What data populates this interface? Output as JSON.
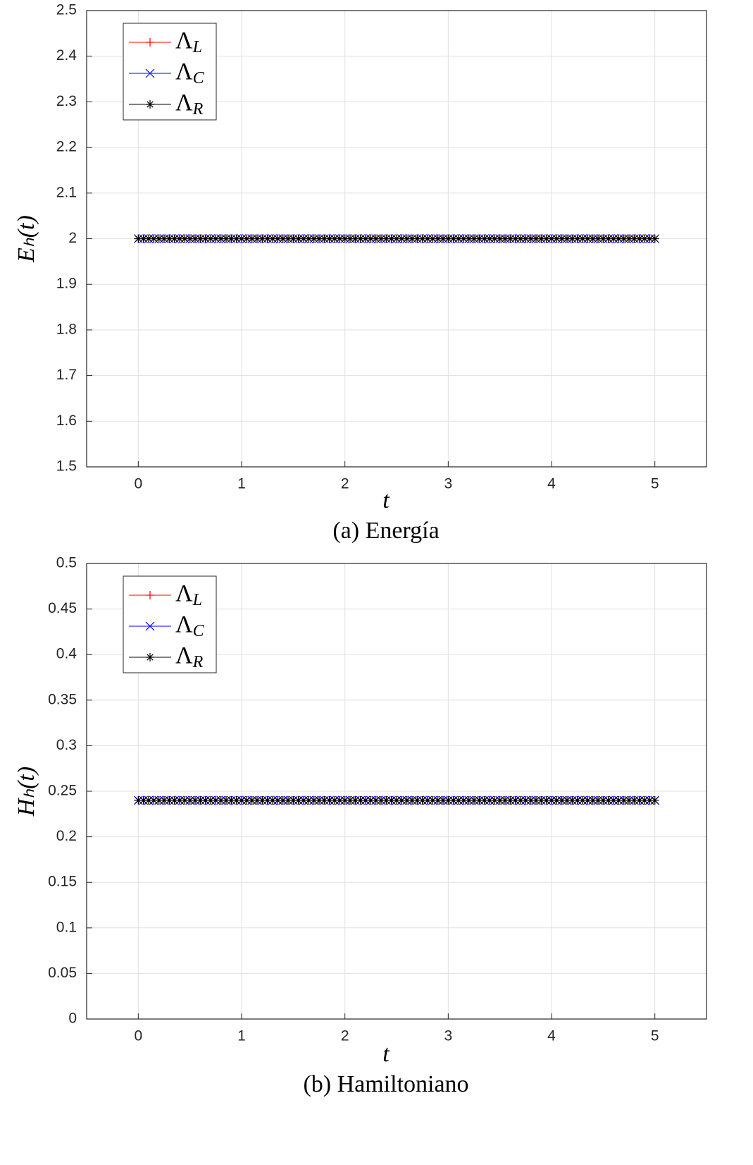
{
  "chart_data": [
    {
      "type": "line",
      "caption": "(a) Energía",
      "xlabel": "t",
      "ylabel": "Eₕ(t)",
      "xlim": [
        -0.5,
        5.5
      ],
      "xticks": [
        0,
        1,
        2,
        3,
        4,
        5
      ],
      "ylim": [
        1.5,
        2.5
      ],
      "yticks": [
        1.5,
        1.6,
        1.7,
        1.8,
        1.9,
        2,
        2.1,
        2.2,
        2.3,
        2.4,
        2.5
      ],
      "grid": true,
      "legend": "northwest",
      "x": [
        0,
        0.05,
        0.1,
        0.15,
        0.2,
        0.25,
        0.3,
        0.35,
        0.4,
        0.45,
        0.5,
        0.55,
        0.6,
        0.65,
        0.7,
        0.75,
        0.8,
        0.85,
        0.9,
        0.95,
        1,
        1.05,
        1.1,
        1.15,
        1.2,
        1.25,
        1.3,
        1.35,
        1.4,
        1.45,
        1.5,
        1.55,
        1.6,
        1.65,
        1.7,
        1.75,
        1.8,
        1.85,
        1.9,
        1.95,
        2,
        2.05,
        2.1,
        2.15,
        2.2,
        2.25,
        2.3,
        2.35,
        2.4,
        2.45,
        2.5,
        2.55,
        2.6,
        2.65,
        2.7,
        2.75,
        2.8,
        2.85,
        2.9,
        2.95,
        3,
        3.05,
        3.1,
        3.15,
        3.2,
        3.25,
        3.3,
        3.35,
        3.4,
        3.45,
        3.5,
        3.55,
        3.6,
        3.65,
        3.7,
        3.75,
        3.8,
        3.85,
        3.9,
        3.95,
        4,
        4.05,
        4.1,
        4.15,
        4.2,
        4.25,
        4.3,
        4.35,
        4.4,
        4.45,
        4.5,
        4.55,
        4.6,
        4.65,
        4.7,
        4.75,
        4.8,
        4.85,
        4.9,
        4.95,
        5
      ],
      "series": [
        {
          "name": "ΛL",
          "color": "#ff0000",
          "marker": "+",
          "values": [
            2,
            2,
            2,
            2,
            2,
            2,
            2,
            2,
            2,
            2,
            2,
            2,
            2,
            2,
            2,
            2,
            2,
            2,
            2,
            2,
            2,
            2,
            2,
            2,
            2,
            2,
            2,
            2,
            2,
            2,
            2,
            2,
            2,
            2,
            2,
            2,
            2,
            2,
            2,
            2,
            2,
            2,
            2,
            2,
            2,
            2,
            2,
            2,
            2,
            2,
            2,
            2,
            2,
            2,
            2,
            2,
            2,
            2,
            2,
            2,
            2,
            2,
            2,
            2,
            2,
            2,
            2,
            2,
            2,
            2,
            2,
            2,
            2,
            2,
            2,
            2,
            2,
            2,
            2,
            2,
            2,
            2,
            2,
            2,
            2,
            2,
            2,
            2,
            2,
            2,
            2,
            2,
            2,
            2,
            2,
            2,
            2,
            2,
            2,
            2,
            2
          ]
        },
        {
          "name": "ΛC",
          "color": "#0000ff",
          "marker": "x",
          "values": [
            2,
            2,
            2,
            2,
            2,
            2,
            2,
            2,
            2,
            2,
            2,
            2,
            2,
            2,
            2,
            2,
            2,
            2,
            2,
            2,
            2,
            2,
            2,
            2,
            2,
            2,
            2,
            2,
            2,
            2,
            2,
            2,
            2,
            2,
            2,
            2,
            2,
            2,
            2,
            2,
            2,
            2,
            2,
            2,
            2,
            2,
            2,
            2,
            2,
            2,
            2,
            2,
            2,
            2,
            2,
            2,
            2,
            2,
            2,
            2,
            2,
            2,
            2,
            2,
            2,
            2,
            2,
            2,
            2,
            2,
            2,
            2,
            2,
            2,
            2,
            2,
            2,
            2,
            2,
            2,
            2,
            2,
            2,
            2,
            2,
            2,
            2,
            2,
            2,
            2,
            2,
            2,
            2,
            2,
            2,
            2,
            2,
            2,
            2,
            2,
            2
          ]
        },
        {
          "name": "ΛR",
          "color": "#000000",
          "marker": "*",
          "values": [
            2,
            2,
            2,
            2,
            2,
            2,
            2,
            2,
            2,
            2,
            2,
            2,
            2,
            2,
            2,
            2,
            2,
            2,
            2,
            2,
            2,
            2,
            2,
            2,
            2,
            2,
            2,
            2,
            2,
            2,
            2,
            2,
            2,
            2,
            2,
            2,
            2,
            2,
            2,
            2,
            2,
            2,
            2,
            2,
            2,
            2,
            2,
            2,
            2,
            2,
            2,
            2,
            2,
            2,
            2,
            2,
            2,
            2,
            2,
            2,
            2,
            2,
            2,
            2,
            2,
            2,
            2,
            2,
            2,
            2,
            2,
            2,
            2,
            2,
            2,
            2,
            2,
            2,
            2,
            2,
            2,
            2,
            2,
            2,
            2,
            2,
            2,
            2,
            2,
            2,
            2,
            2,
            2,
            2,
            2,
            2,
            2,
            2,
            2,
            2,
            2
          ]
        }
      ]
    },
    {
      "type": "line",
      "caption": "(b) Hamiltoniano",
      "xlabel": "t",
      "ylabel": "Hₕ(t)",
      "xlim": [
        -0.5,
        5.5
      ],
      "xticks": [
        0,
        1,
        2,
        3,
        4,
        5
      ],
      "ylim": [
        0,
        0.5
      ],
      "yticks": [
        0,
        0.05,
        0.1,
        0.15,
        0.2,
        0.25,
        0.3,
        0.35,
        0.4,
        0.45,
        0.5
      ],
      "grid": true,
      "legend": "northwest",
      "x": [
        0,
        0.05,
        0.1,
        0.15,
        0.2,
        0.25,
        0.3,
        0.35,
        0.4,
        0.45,
        0.5,
        0.55,
        0.6,
        0.65,
        0.7,
        0.75,
        0.8,
        0.85,
        0.9,
        0.95,
        1,
        1.05,
        1.1,
        1.15,
        1.2,
        1.25,
        1.3,
        1.35,
        1.4,
        1.45,
        1.5,
        1.55,
        1.6,
        1.65,
        1.7,
        1.75,
        1.8,
        1.85,
        1.9,
        1.95,
        2,
        2.05,
        2.1,
        2.15,
        2.2,
        2.25,
        2.3,
        2.35,
        2.4,
        2.45,
        2.5,
        2.55,
        2.6,
        2.65,
        2.7,
        2.75,
        2.8,
        2.85,
        2.9,
        2.95,
        3,
        3.05,
        3.1,
        3.15,
        3.2,
        3.25,
        3.3,
        3.35,
        3.4,
        3.45,
        3.5,
        3.55,
        3.6,
        3.65,
        3.7,
        3.75,
        3.8,
        3.85,
        3.9,
        3.95,
        4,
        4.05,
        4.1,
        4.15,
        4.2,
        4.25,
        4.3,
        4.35,
        4.4,
        4.45,
        4.5,
        4.55,
        4.6,
        4.65,
        4.7,
        4.75,
        4.8,
        4.85,
        4.9,
        4.95,
        5
      ],
      "series": [
        {
          "name": "ΛL",
          "color": "#ff0000",
          "marker": "+",
          "values": [
            0.24,
            0.24,
            0.24,
            0.24,
            0.24,
            0.24,
            0.24,
            0.24,
            0.24,
            0.24,
            0.24,
            0.24,
            0.24,
            0.24,
            0.24,
            0.24,
            0.24,
            0.24,
            0.24,
            0.24,
            0.24,
            0.24,
            0.24,
            0.24,
            0.24,
            0.24,
            0.24,
            0.24,
            0.24,
            0.24,
            0.24,
            0.24,
            0.24,
            0.24,
            0.24,
            0.24,
            0.24,
            0.24,
            0.24,
            0.24,
            0.24,
            0.24,
            0.24,
            0.24,
            0.24,
            0.24,
            0.24,
            0.24,
            0.24,
            0.24,
            0.24,
            0.24,
            0.24,
            0.24,
            0.24,
            0.24,
            0.24,
            0.24,
            0.24,
            0.24,
            0.24,
            0.24,
            0.24,
            0.24,
            0.24,
            0.24,
            0.24,
            0.24,
            0.24,
            0.24,
            0.24,
            0.24,
            0.24,
            0.24,
            0.24,
            0.24,
            0.24,
            0.24,
            0.24,
            0.24,
            0.24,
            0.24,
            0.24,
            0.24,
            0.24,
            0.24,
            0.24,
            0.24,
            0.24,
            0.24,
            0.24,
            0.24,
            0.24,
            0.24,
            0.24,
            0.24,
            0.24,
            0.24,
            0.24,
            0.24,
            0.24
          ]
        },
        {
          "name": "ΛC",
          "color": "#0000ff",
          "marker": "x",
          "values": [
            0.24,
            0.24,
            0.24,
            0.24,
            0.24,
            0.24,
            0.24,
            0.24,
            0.24,
            0.24,
            0.24,
            0.24,
            0.24,
            0.24,
            0.24,
            0.24,
            0.24,
            0.24,
            0.24,
            0.24,
            0.24,
            0.24,
            0.24,
            0.24,
            0.24,
            0.24,
            0.24,
            0.24,
            0.24,
            0.24,
            0.24,
            0.24,
            0.24,
            0.24,
            0.24,
            0.24,
            0.24,
            0.24,
            0.24,
            0.24,
            0.24,
            0.24,
            0.24,
            0.24,
            0.24,
            0.24,
            0.24,
            0.24,
            0.24,
            0.24,
            0.24,
            0.24,
            0.24,
            0.24,
            0.24,
            0.24,
            0.24,
            0.24,
            0.24,
            0.24,
            0.24,
            0.24,
            0.24,
            0.24,
            0.24,
            0.24,
            0.24,
            0.24,
            0.24,
            0.24,
            0.24,
            0.24,
            0.24,
            0.24,
            0.24,
            0.24,
            0.24,
            0.24,
            0.24,
            0.24,
            0.24,
            0.24,
            0.24,
            0.24,
            0.24,
            0.24,
            0.24,
            0.24,
            0.24,
            0.24,
            0.24,
            0.24,
            0.24,
            0.24,
            0.24,
            0.24,
            0.24,
            0.24,
            0.24,
            0.24,
            0.24
          ]
        },
        {
          "name": "ΛR",
          "color": "#000000",
          "marker": "*",
          "values": [
            0.24,
            0.24,
            0.24,
            0.24,
            0.24,
            0.24,
            0.24,
            0.24,
            0.24,
            0.24,
            0.24,
            0.24,
            0.24,
            0.24,
            0.24,
            0.24,
            0.24,
            0.24,
            0.24,
            0.24,
            0.24,
            0.24,
            0.24,
            0.24,
            0.24,
            0.24,
            0.24,
            0.24,
            0.24,
            0.24,
            0.24,
            0.24,
            0.24,
            0.24,
            0.24,
            0.24,
            0.24,
            0.24,
            0.24,
            0.24,
            0.24,
            0.24,
            0.24,
            0.24,
            0.24,
            0.24,
            0.24,
            0.24,
            0.24,
            0.24,
            0.24,
            0.24,
            0.24,
            0.24,
            0.24,
            0.24,
            0.24,
            0.24,
            0.24,
            0.24,
            0.24,
            0.24,
            0.24,
            0.24,
            0.24,
            0.24,
            0.24,
            0.24,
            0.24,
            0.24,
            0.24,
            0.24,
            0.24,
            0.24,
            0.24,
            0.24,
            0.24,
            0.24,
            0.24,
            0.24,
            0.24,
            0.24,
            0.24,
            0.24,
            0.24,
            0.24,
            0.24,
            0.24,
            0.24,
            0.24,
            0.24,
            0.24,
            0.24,
            0.24,
            0.24,
            0.24,
            0.24,
            0.24,
            0.24,
            0.24,
            0.24
          ]
        }
      ]
    }
  ]
}
